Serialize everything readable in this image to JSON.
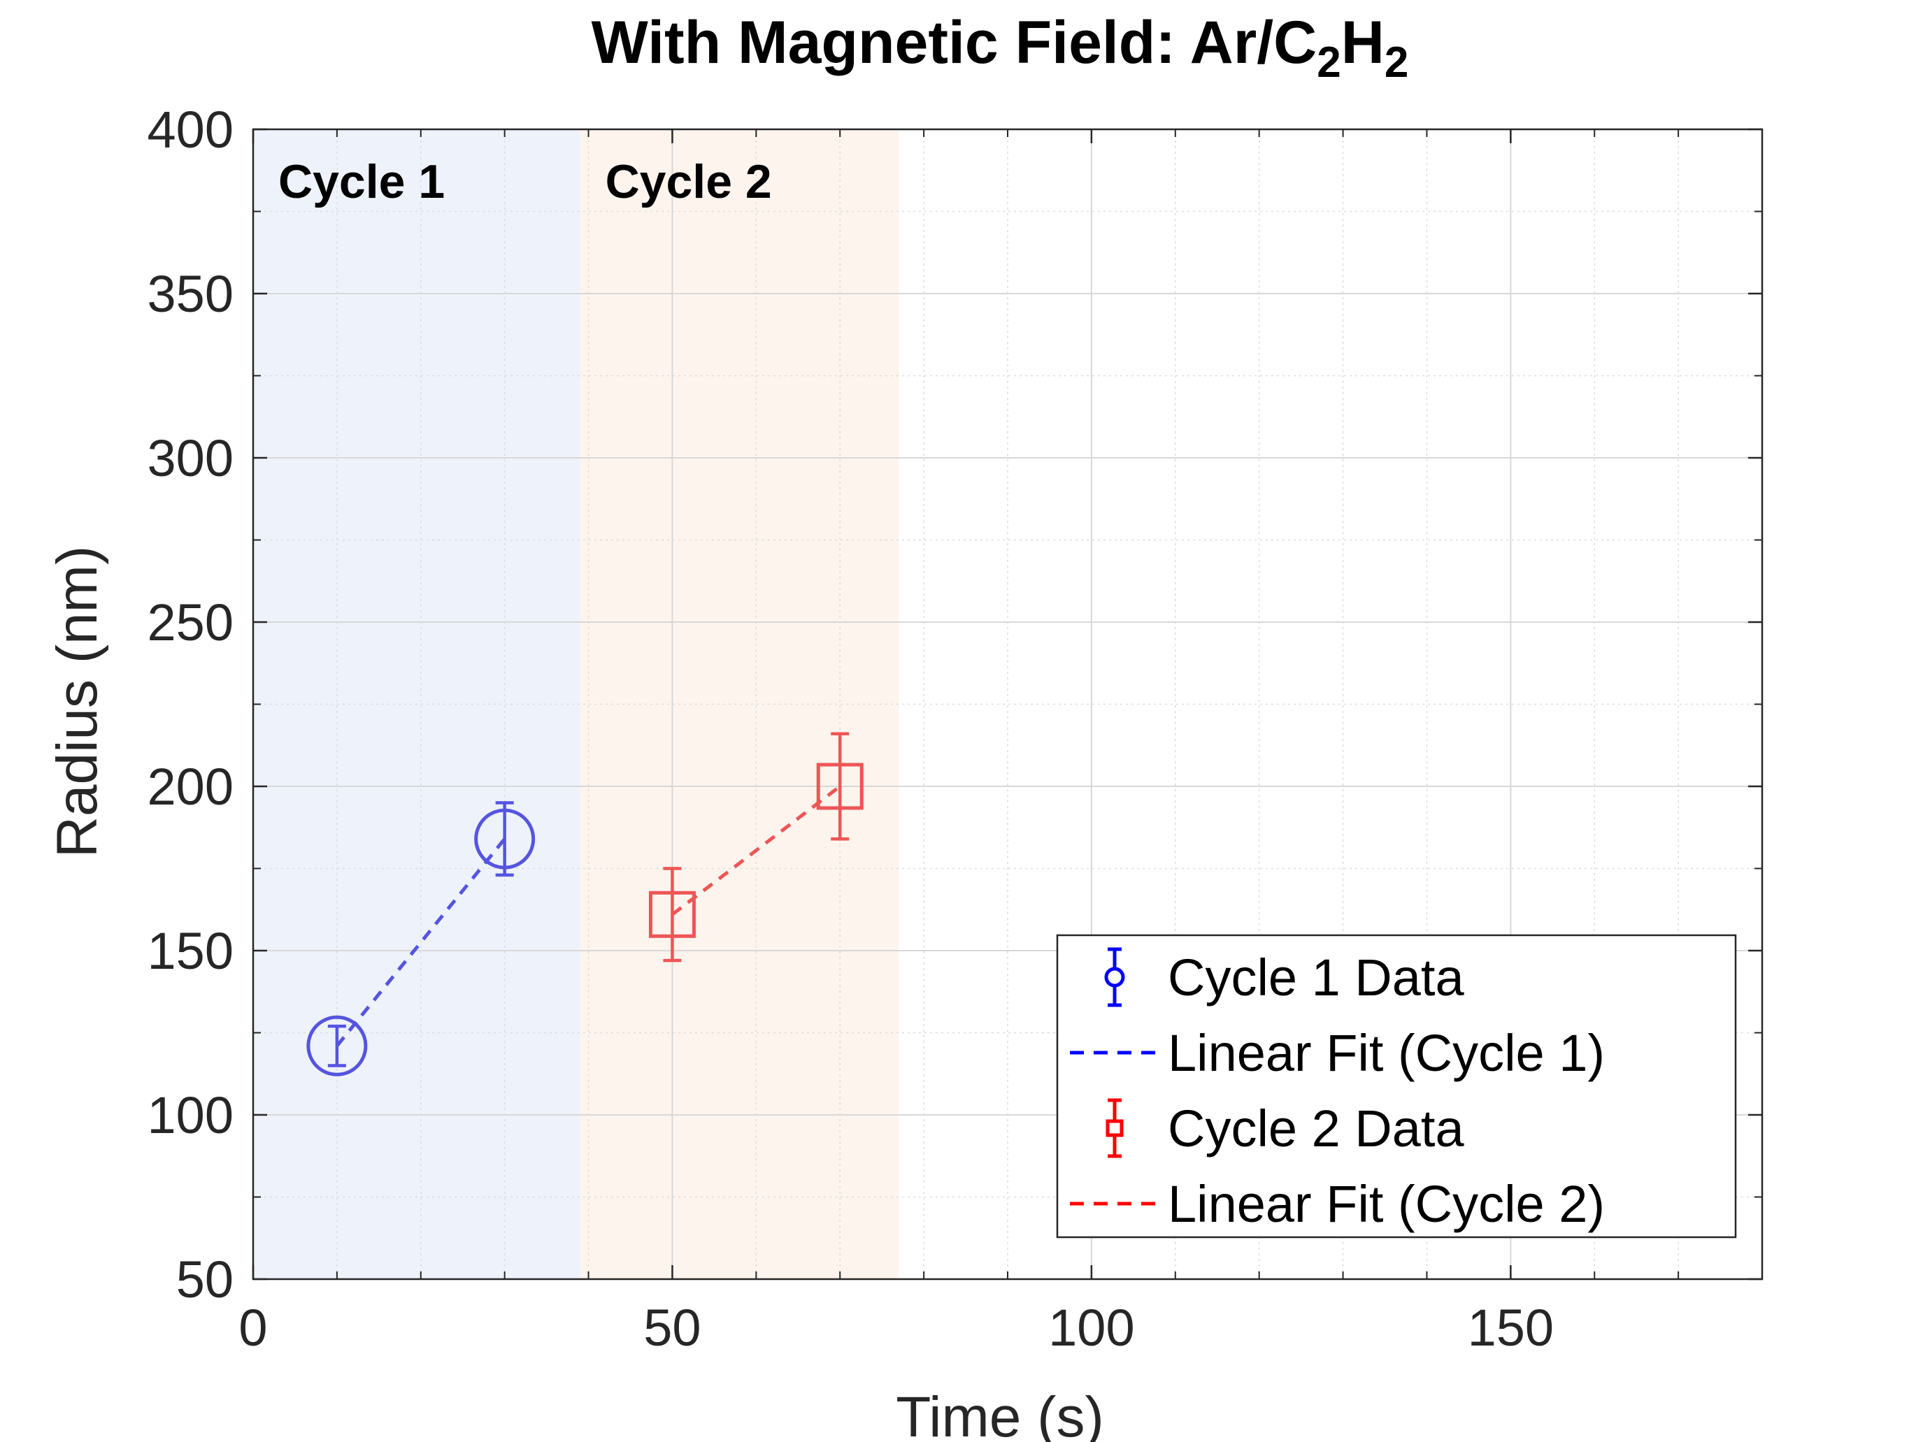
{
  "chart_data": {
    "type": "scatter",
    "title": {
      "main": "With Magnetic Field: Ar/C",
      "sub1": "2",
      "mid": "H",
      "sub2": "2"
    },
    "xlabel": "Time (s)",
    "ylabel": "Radius (nm)",
    "xlim": [
      0,
      180
    ],
    "ylim": [
      50,
      400
    ],
    "xticks": [
      0,
      50,
      100,
      150
    ],
    "yticks": [
      50,
      100,
      150,
      200,
      250,
      300,
      350,
      400
    ],
    "xtick_labels": [
      "0",
      "50",
      "100",
      "150"
    ],
    "ytick_labels": [
      "50",
      "100",
      "150",
      "200",
      "250",
      "300",
      "350",
      "400"
    ],
    "grid": true,
    "minor_grid": true,
    "regions": [
      {
        "label": "Cycle 1",
        "x_start": 0,
        "x_end": 39,
        "color": "#eef2fb"
      },
      {
        "label": "Cycle 2",
        "x_start": 39,
        "x_end": 77,
        "color": "#fdf4ee"
      }
    ],
    "series": [
      {
        "name": "Cycle 1 Data",
        "marker": "circle",
        "color": "#5555e0",
        "legend_color": "#0000ff",
        "x": [
          10,
          30
        ],
        "y": [
          121,
          184
        ],
        "err": [
          6,
          11
        ]
      },
      {
        "name": "Linear Fit (Cycle 1)",
        "line": "dashed",
        "color": "#5555e0",
        "legend_color": "#0000ff",
        "x": [
          10,
          30
        ],
        "y": [
          121,
          184
        ]
      },
      {
        "name": "Cycle 2 Data",
        "marker": "square",
        "color": "#ee5555",
        "legend_color": "#ff0000",
        "x": [
          50,
          70
        ],
        "y": [
          161,
          200
        ],
        "err": [
          14,
          16
        ]
      },
      {
        "name": "Linear Fit (Cycle 2)",
        "line": "dashed",
        "color": "#ee5555",
        "legend_color": "#ff0000",
        "x": [
          50,
          70
        ],
        "y": [
          161,
          200
        ]
      }
    ],
    "legend_position": "bottom-right"
  }
}
